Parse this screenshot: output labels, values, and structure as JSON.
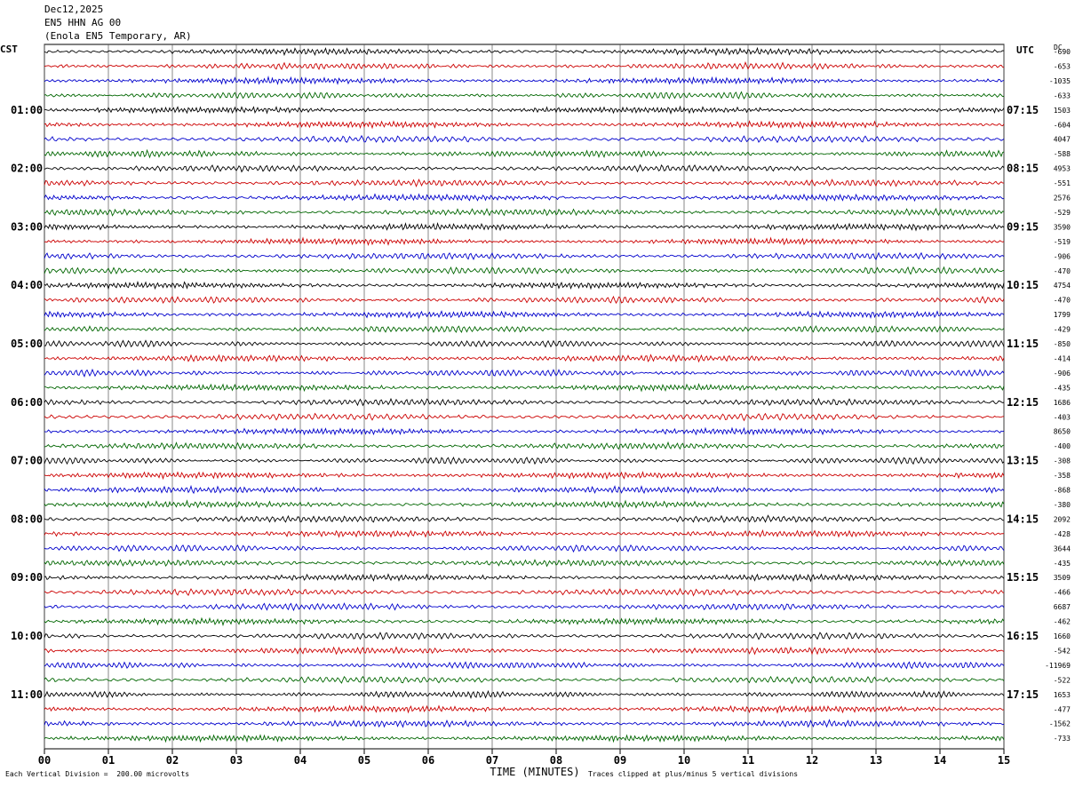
{
  "header": {
    "date": "Dec12,2025",
    "channel": "EN5 HHN AG 00",
    "station": "(Enola EN5 Temporary, AR)",
    "left_tz": "CST",
    "right_tz": "UTC",
    "dc_label": "DC"
  },
  "footer": {
    "scale": "Each Vertical Division =  200.00 microvolts",
    "clip": "Traces clipped at plus/minus 5 vertical divisions"
  },
  "colors": {
    "trace_cycle": [
      "#000000",
      "#cc0000",
      "#0000cc",
      "#006600"
    ],
    "grid": "#000000"
  },
  "chart_data": {
    "type": "line",
    "title": "Dec12,2025 EN5 HHN AG 00 (Enola EN5 Temporary, AR)",
    "xlabel": "TIME (MINUTES)",
    "xlim": [
      0,
      15
    ],
    "x_ticks": [
      "00",
      "01",
      "02",
      "03",
      "04",
      "05",
      "06",
      "07",
      "08",
      "09",
      "10",
      "11",
      "12",
      "13",
      "14",
      "15"
    ],
    "left_hour_labels": [
      "01:00",
      "02:00",
      "03:00",
      "04:00",
      "05:00",
      "06:00",
      "07:00",
      "08:00",
      "09:00",
      "10:00",
      "11:00"
    ],
    "right_hour_labels": [
      "07:15",
      "08:15",
      "09:15",
      "10:15",
      "11:15",
      "12:15",
      "13:15",
      "14:15",
      "15:15",
      "16:15",
      "17:15"
    ],
    "trace_count": 48,
    "dc_offsets": [
      "-690",
      "-653",
      "-1035",
      "-633",
      "1503",
      "-604",
      "4047",
      "-588",
      "4953",
      "-551",
      "2576",
      "-529",
      "3590",
      "-519",
      "-906",
      "-470",
      "4754",
      "-470",
      "1799",
      "-429",
      "-850",
      "-414",
      "-906",
      "-435",
      "1686",
      "-403",
      "8650",
      "-400",
      "-308",
      "-358",
      "-868",
      "-380",
      "2092",
      "-428",
      "3644",
      "-435",
      "3509",
      "-466",
      "6687",
      "-462",
      "1660",
      "-542",
      "-11969",
      "-522",
      "1653",
      "-477",
      "-1562",
      "-733"
    ],
    "grid": true
  }
}
